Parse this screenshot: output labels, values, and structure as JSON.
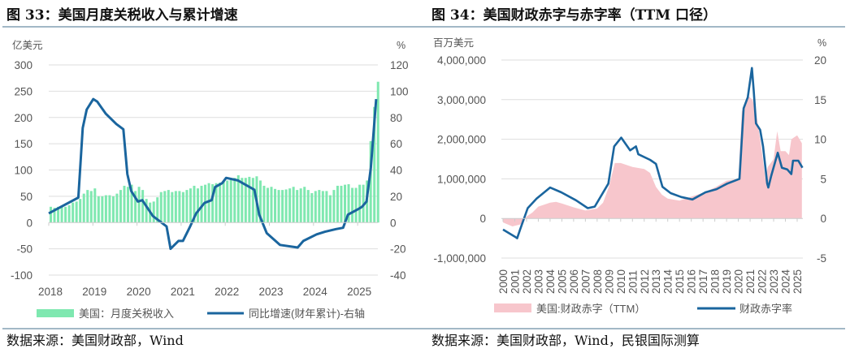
{
  "chart_data": [
    {
      "type": "bar+line",
      "title": "图 33：美国月度关税收入与累计增速",
      "source": "数据来源：美国财政部，Wind",
      "left_unit": "亿美元",
      "right_unit": "%",
      "ylim_left": [
        -100,
        300
      ],
      "ylim_right": [
        -40,
        120
      ],
      "yticks_left": [
        "300",
        "250",
        "200",
        "150",
        "100",
        "50",
        "0",
        "-50",
        "-100"
      ],
      "yticks_right": [
        "120",
        "100",
        "80",
        "60",
        "40",
        "20",
        "0",
        "-20",
        "-40"
      ],
      "xticks": [
        "2018",
        "2019",
        "2020",
        "2021",
        "2022",
        "2023",
        "2024",
        "2025"
      ],
      "grid": true,
      "legend_position": "bottom",
      "colors": {
        "bars": "#7fe8b0",
        "line": "#1a659e"
      },
      "bar_series": {
        "name": "美国：月度关税收入",
        "start": "2018-01",
        "frequency": "monthly",
        "values": [
          30,
          28,
          30,
          32,
          30,
          33,
          38,
          40,
          45,
          55,
          62,
          60,
          65,
          50,
          50,
          52,
          52,
          50,
          55,
          62,
          70,
          68,
          72,
          60,
          68,
          62,
          45,
          38,
          40,
          48,
          58,
          60,
          62,
          58,
          60,
          60,
          58,
          62,
          65,
          70,
          65,
          70,
          72,
          75,
          73,
          75,
          76,
          78,
          80,
          82,
          85,
          90,
          85,
          85,
          87,
          85,
          88,
          80,
          70,
          66,
          68,
          64,
          62,
          62,
          63,
          65,
          68,
          62,
          65,
          68,
          62,
          56,
          60,
          62,
          60,
          60,
          52,
          62,
          70,
          70,
          72,
          73,
          66,
          66,
          72,
          72,
          80,
          155,
          220,
          268
        ]
      },
      "line_series": {
        "name": "同比增速(财年累计)-右轴",
        "points": [
          [
            2018.0,
            7
          ],
          [
            2018.67,
            19
          ],
          [
            2018.77,
            72
          ],
          [
            2018.86,
            86
          ],
          [
            2019.01,
            94
          ],
          [
            2019.1,
            92
          ],
          [
            2019.29,
            83
          ],
          [
            2019.53,
            75
          ],
          [
            2019.69,
            71
          ],
          [
            2019.78,
            37
          ],
          [
            2019.87,
            24
          ],
          [
            2020.02,
            16
          ],
          [
            2020.12,
            17
          ],
          [
            2020.36,
            5
          ],
          [
            2020.67,
            -3
          ],
          [
            2020.76,
            -20
          ],
          [
            2020.94,
            -14
          ],
          [
            2021.04,
            -14
          ],
          [
            2021.19,
            -4
          ],
          [
            2021.34,
            7
          ],
          [
            2021.53,
            15
          ],
          [
            2021.69,
            17
          ],
          [
            2021.77,
            27
          ],
          [
            2021.93,
            30
          ],
          [
            2022.02,
            34
          ],
          [
            2022.29,
            32
          ],
          [
            2022.66,
            25
          ],
          [
            2022.77,
            6
          ],
          [
            2022.94,
            -8
          ],
          [
            2023.24,
            -17
          ],
          [
            2023.64,
            -19
          ],
          [
            2023.77,
            -14
          ],
          [
            2024.07,
            -9
          ],
          [
            2024.26,
            -7
          ],
          [
            2024.51,
            -5
          ],
          [
            2024.67,
            -4
          ],
          [
            2024.78,
            6
          ],
          [
            2025.0,
            10
          ],
          [
            2025.1,
            12
          ],
          [
            2025.2,
            16
          ],
          [
            2025.3,
            42
          ],
          [
            2025.42,
            94
          ]
        ]
      }
    },
    {
      "type": "area+line",
      "title": "图 34：美国财政赤字与赤字率（TTM 口径）",
      "source": "数据来源：美国财政部，Wind，民银国际测算",
      "left_unit": "百万美元",
      "right_unit": "%",
      "ylim_left": [
        -1000000,
        4000000
      ],
      "ylim_right": [
        -5,
        20
      ],
      "yticks_left": [
        "4,000,000",
        "3,000,000",
        "2,000,000",
        "1,000,000",
        "0",
        "-1,000,000"
      ],
      "yticks_right": [
        "20",
        "15",
        "10",
        "5",
        "0",
        "-5"
      ],
      "xticks": [
        "2000",
        "2001",
        "2002",
        "2003",
        "2004",
        "2005",
        "2006",
        "2007",
        "2008",
        "2009",
        "2010",
        "2011",
        "2012",
        "2013",
        "2014",
        "2015",
        "2016",
        "2017",
        "2018",
        "2019",
        "2020",
        "2021",
        "2022",
        "2023",
        "2024",
        "2025"
      ],
      "grid": true,
      "legend_position": "bottom",
      "colors": {
        "area": "#f7c6cc",
        "line": "#1a659e"
      },
      "area_series": {
        "name": "美国:财政赤字（TTM）",
        "points": [
          [
            2000.0,
            -100000
          ],
          [
            2000.8,
            -200000
          ],
          [
            2001.5,
            -150000
          ],
          [
            2002.0,
            50000
          ],
          [
            2002.5,
            150000
          ],
          [
            2003.0,
            300000
          ],
          [
            2004.0,
            400000
          ],
          [
            2004.5,
            420000
          ],
          [
            2005.0,
            380000
          ],
          [
            2006.0,
            280000
          ],
          [
            2007.0,
            200000
          ],
          [
            2008.0,
            250000
          ],
          [
            2008.5,
            400000
          ],
          [
            2009.0,
            800000
          ],
          [
            2009.5,
            1400000
          ],
          [
            2010.0,
            1400000
          ],
          [
            2011.0,
            1300000
          ],
          [
            2012.0,
            1250000
          ],
          [
            2012.5,
            1150000
          ],
          [
            2013.0,
            800000
          ],
          [
            2013.5,
            600000
          ],
          [
            2014.0,
            500000
          ],
          [
            2015.0,
            450000
          ],
          [
            2016.0,
            550000
          ],
          [
            2017.0,
            650000
          ],
          [
            2018.0,
            780000
          ],
          [
            2019.0,
            950000
          ],
          [
            2020.0,
            1000000
          ],
          [
            2020.3,
            2700000
          ],
          [
            2020.8,
            3100000
          ],
          [
            2021.2,
            3000000
          ],
          [
            2021.5,
            2700000
          ],
          [
            2021.9,
            1900000
          ],
          [
            2022.3,
            1000000
          ],
          [
            2022.5,
            1300000
          ],
          [
            2023.0,
            1500000
          ],
          [
            2023.3,
            2200000
          ],
          [
            2023.6,
            1700000
          ],
          [
            2024.0,
            1700000
          ],
          [
            2024.3,
            1600000
          ],
          [
            2024.5,
            2000000
          ],
          [
            2025.0,
            2100000
          ],
          [
            2025.4,
            1900000
          ]
        ]
      },
      "line_series": {
        "name": "财政赤字率",
        "points": [
          [
            2000.0,
            -1.4
          ],
          [
            2001.0,
            -2.3
          ],
          [
            2001.2,
            -2.5
          ],
          [
            2001.45,
            -1.4
          ],
          [
            2002.1,
            1.3
          ],
          [
            2002.85,
            2.5
          ],
          [
            2004.0,
            3.9
          ],
          [
            2004.95,
            3.3
          ],
          [
            2006.2,
            2.3
          ],
          [
            2007.2,
            1.3
          ],
          [
            2007.8,
            1.5
          ],
          [
            2008.95,
            4.4
          ],
          [
            2009.45,
            9.1
          ],
          [
            2010.05,
            10.2
          ],
          [
            2010.8,
            8.6
          ],
          [
            2011.3,
            9.1
          ],
          [
            2011.5,
            8.1
          ],
          [
            2012.5,
            7.4
          ],
          [
            2013.0,
            6.9
          ],
          [
            2013.55,
            4.0
          ],
          [
            2014.25,
            3.2
          ],
          [
            2015.15,
            2.7
          ],
          [
            2016.1,
            2.4
          ],
          [
            2017.2,
            3.3
          ],
          [
            2018.15,
            3.7
          ],
          [
            2019.05,
            4.4
          ],
          [
            2020.1,
            5.0
          ],
          [
            2020.45,
            13.9
          ],
          [
            2020.8,
            15.3
          ],
          [
            2021.15,
            19.0
          ],
          [
            2021.3,
            16.3
          ],
          [
            2021.5,
            12.0
          ],
          [
            2021.85,
            11.2
          ],
          [
            2022.1,
            9.1
          ],
          [
            2022.45,
            4.4
          ],
          [
            2022.55,
            3.9
          ],
          [
            2022.8,
            5.4
          ],
          [
            2023.35,
            8.3
          ],
          [
            2023.7,
            6.4
          ],
          [
            2024.15,
            6.2
          ],
          [
            2024.5,
            5.6
          ],
          [
            2024.65,
            7.3
          ],
          [
            2025.1,
            7.3
          ],
          [
            2025.45,
            6.4
          ]
        ]
      }
    }
  ]
}
